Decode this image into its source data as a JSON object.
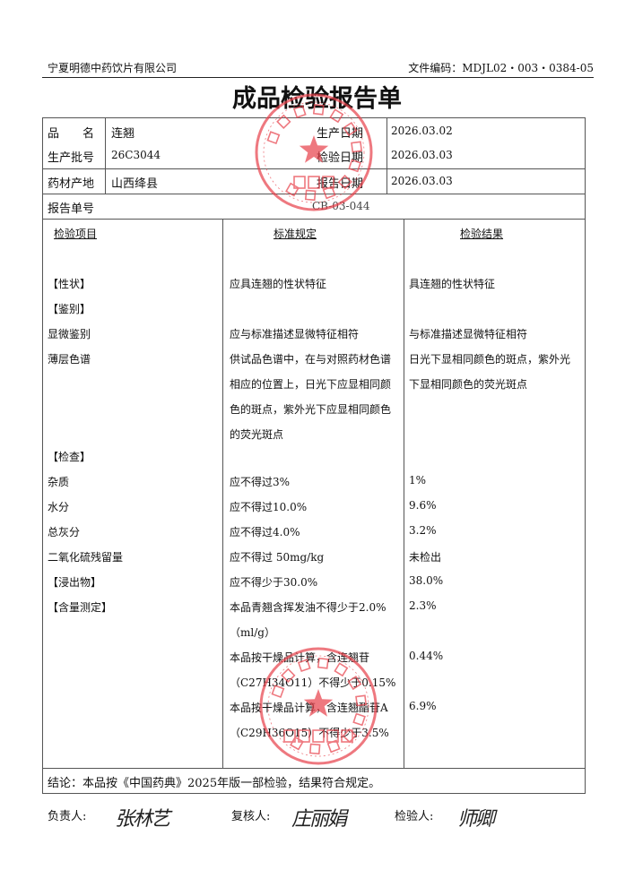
{
  "header": {
    "company": "宁夏明德中药饮片有限公司",
    "doc_code": "文件编码：MDJL02・003・0384-05"
  },
  "title": "成品检验报告单",
  "info": {
    "name_label": "品　　名",
    "name": "连翘",
    "batch_label": "生产批号",
    "batch": "26C3044",
    "origin_label": "药材产地",
    "origin": "山西绛县",
    "prod_date_label": "生产日期",
    "prod_date": "2026.03.02",
    "test_date_label": "检验日期",
    "test_date": "2026.03.03",
    "report_date_label": "报告日期",
    "report_date": "2026.03.03",
    "report_no_label": "报告单号",
    "report_no": "CB-03-044"
  },
  "columns": [
    "检验项目",
    "标准规定",
    "检验结果"
  ],
  "rows": [
    {
      "item": "【性状】",
      "std": [
        "应具连翘的性状特征"
      ],
      "result": [
        "具连翘的性状特征"
      ]
    },
    {
      "item": "【鉴别】",
      "std": [],
      "result": []
    },
    {
      "item": "显微鉴别",
      "std": [
        "应与标准描述显微特征相符"
      ],
      "result": [
        "与标准描述显微特征相符"
      ]
    },
    {
      "item": "薄层色谱",
      "std": [
        "供试品色谱中，在与对照药材色谱",
        "相应的位置上，日光下应显相同颜",
        "色的斑点，紫外光下应显相同颜色",
        "的荧光斑点"
      ],
      "result": [
        "日光下显相同颜色的斑点，紫外光",
        "下显相同颜色的荧光斑点"
      ]
    },
    {
      "item": "【检查】",
      "std": [],
      "result": []
    },
    {
      "item": "杂质",
      "std": [
        "应不得过3%"
      ],
      "result": [
        "1%"
      ]
    },
    {
      "item": "水分",
      "std": [
        "应不得过10.0%"
      ],
      "result": [
        "9.6%"
      ]
    },
    {
      "item": "总灰分",
      "std": [
        "应不得过4.0%"
      ],
      "result": [
        "3.2%"
      ]
    },
    {
      "item": "二氧化硫残留量",
      "std": [
        "应不得过 50mg/kg"
      ],
      "result": [
        "未检出"
      ]
    },
    {
      "item": "【浸出物】",
      "std": [
        "应不得少于30.0%"
      ],
      "result": [
        "38.0%"
      ]
    },
    {
      "item": "【含量测定】",
      "std": [
        "本品青翘含挥发油不得少于2.0%",
        "（ml/g）"
      ],
      "result": [
        "2.3%"
      ]
    },
    {
      "item": "",
      "std": [
        "本品按干燥品计算，含连翘苷",
        "（C27H34O11）不得少于0.15%"
      ],
      "result": [
        "0.44%"
      ]
    },
    {
      "item": "",
      "std": [
        "本品按干燥品计算，含连翘酯苷A",
        "（C29H36O15）不得少于3.5%"
      ],
      "result": [
        "6.9%"
      ]
    }
  ],
  "conclusion": "结论：本品按《中国药典》2025年版一部检验，结果符合规定。",
  "signatures": {
    "responsible_label": "负责人:",
    "responsible": "张林艺",
    "reviewer_label": "复核人:",
    "reviewer": "庄丽娟",
    "inspector_label": "检验人:",
    "inspector": "师卿"
  },
  "stamps": {
    "top": {
      "ring": "宁夏明德中药饮片有限公司",
      "center": "质 量 部"
    },
    "bottom": {
      "ring": "宁夏明德中药饮片有限公司",
      "center": "质检专用章"
    },
    "color": "#e8404a"
  }
}
